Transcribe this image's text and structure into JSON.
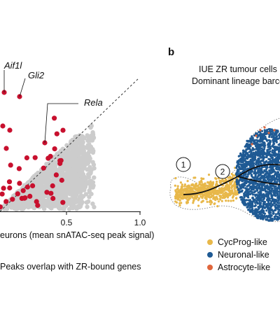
{
  "panel_b": {
    "letter": "b",
    "title_line1": "IUE ZR tumour cells",
    "title_line2": "Dominant lineage barcod",
    "circle_labels": [
      "1",
      "2"
    ],
    "legend": [
      {
        "label": "CycProg-like",
        "color": "#e8b84a"
      },
      {
        "label": "Neuronal-like",
        "color": "#1f5a94"
      },
      {
        "label": "Astrocyte-like",
        "color": "#e0663c"
      }
    ]
  },
  "chart_data": [
    {
      "type": "scatter",
      "title": "",
      "xlabel": "eurons (mean snATAC-seq peak signal)",
      "ylabel": "",
      "xlim": [
        0,
        1.0
      ],
      "x_ticks": [
        "0.5",
        "1.0"
      ],
      "grid": false,
      "reference_line": "diagonal dashed",
      "series": [
        {
          "name": "Peaks overlap with ZR-bound genes",
          "color": "#c8102e",
          "points_approx": 45
        },
        {
          "name": "",
          "color": "#cccccc",
          "points_approx": 1400
        }
      ],
      "annotations": [
        "Aif1l",
        "Gli2",
        "Rela"
      ],
      "legend_text": "Peaks overlap with ZR-bound genes"
    }
  ]
}
